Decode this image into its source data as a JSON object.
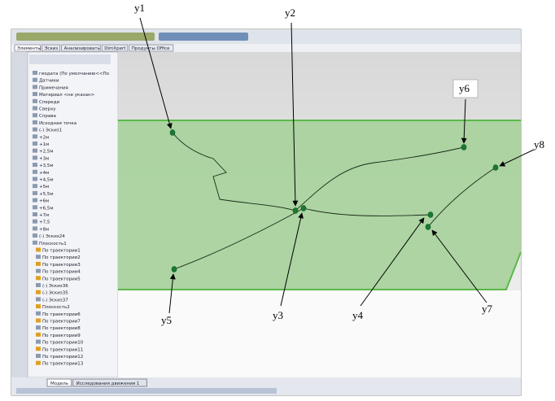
{
  "callouts": [
    "y1",
    "y2",
    "y3",
    "y4",
    "y5",
    "y6",
    "y7",
    "y8"
  ],
  "tabs": [
    "Элементы",
    "Эскиз",
    "Анализировать",
    "DimXpert",
    "Продукты Office"
  ],
  "tree": [
    "геодата (По умолчанию<<По",
    "Датчики",
    "Примечания",
    "Материал <не указан>",
    "Спереди",
    "Сверху",
    "Справа",
    "Исходная точка",
    "(-) Эскиз1",
    "+2м",
    "+1м",
    "+2,5м",
    "+3м",
    "+3,5м",
    "+4м",
    "+4,5м",
    "+5м",
    "+5,5м",
    "+6м",
    "+6,5м",
    "+7м",
    "+7,5",
    "+8м",
    "(-) Эскиз24",
    "Плоскость1",
    "По траектории1",
    "По траектории2",
    "По траектории3",
    "По траектории4",
    "По траектории5",
    "(-) Эскиз36",
    "(-) Эскиз35",
    "(-) Эскиз37",
    "Плоскость2",
    "По траектории6",
    "По траектории7",
    "По траектории8",
    "По траектории9",
    "По траектории10",
    "По траектории11",
    "По траектории12",
    "По траектории13"
  ],
  "bottom_tabs": [
    "Модель",
    "Исследования движения 1"
  ]
}
